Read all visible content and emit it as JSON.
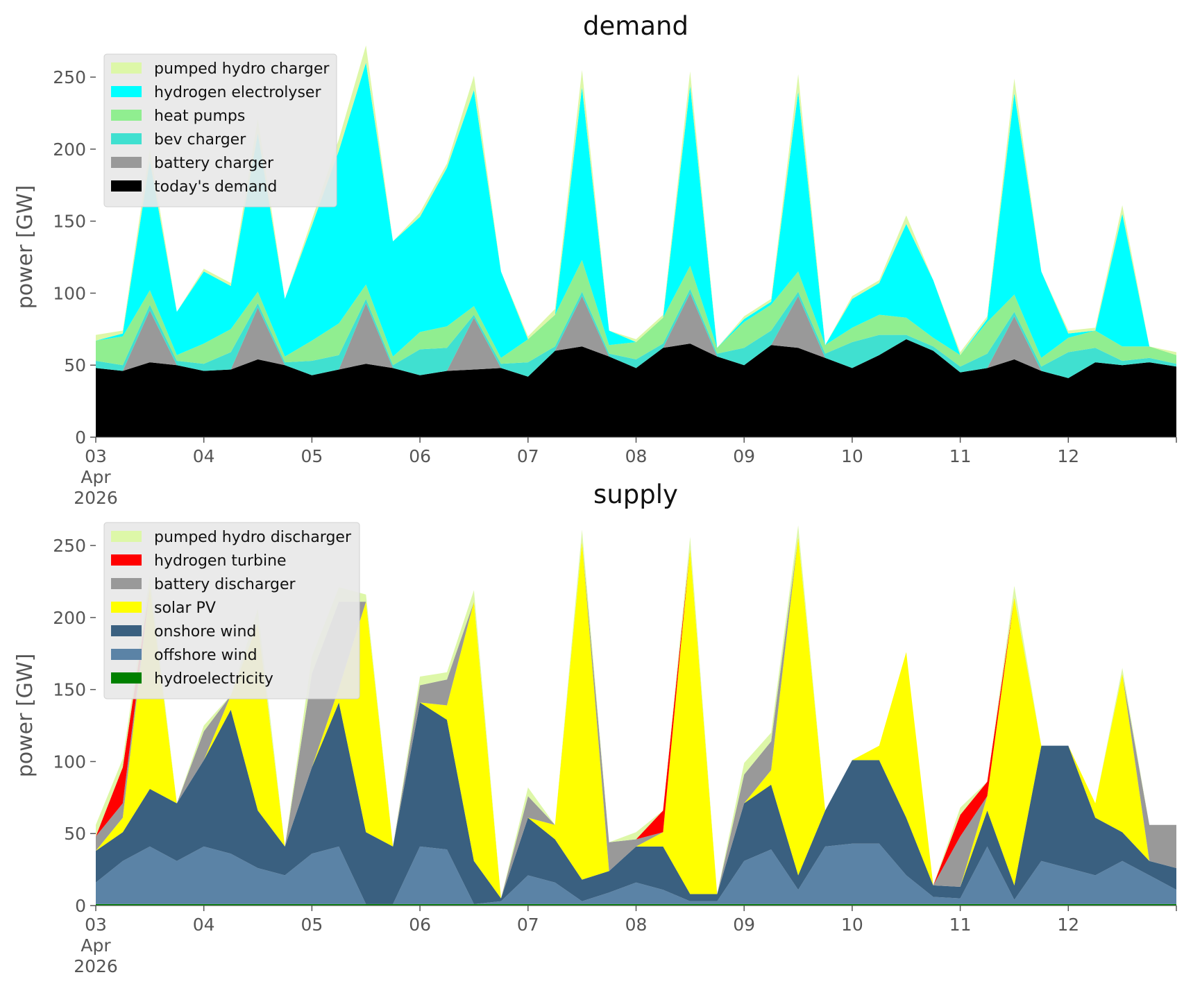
{
  "chart_data": [
    {
      "type": "area",
      "title": "demand",
      "xlabel": "",
      "ylabel": "power [GW]",
      "xlim": [
        "2026-04-03 00:00",
        "2026-04-13 00:00"
      ],
      "ylim": [
        0,
        265
      ],
      "yticks": [
        0,
        50,
        100,
        150,
        200,
        250
      ],
      "xticks": [
        "03\nApr\n2026",
        "04",
        "05",
        "06",
        "07",
        "08",
        "09",
        "10",
        "11",
        "12"
      ],
      "stacked": true,
      "legend_position": "top-left",
      "grid": false,
      "x": [
        "2026-04-03 00:00",
        "2026-04-03 06:00",
        "2026-04-03 12:00",
        "2026-04-03 18:00",
        "2026-04-04 00:00",
        "2026-04-04 06:00",
        "2026-04-04 12:00",
        "2026-04-04 18:00",
        "2026-04-05 00:00",
        "2026-04-05 06:00",
        "2026-04-05 12:00",
        "2026-04-05 18:00",
        "2026-04-06 00:00",
        "2026-04-06 06:00",
        "2026-04-06 12:00",
        "2026-04-06 18:00",
        "2026-04-07 00:00",
        "2026-04-07 06:00",
        "2026-04-07 12:00",
        "2026-04-07 18:00",
        "2026-04-08 00:00",
        "2026-04-08 06:00",
        "2026-04-08 12:00",
        "2026-04-08 18:00",
        "2026-04-09 00:00",
        "2026-04-09 06:00",
        "2026-04-09 12:00",
        "2026-04-09 18:00",
        "2026-04-10 00:00",
        "2026-04-10 06:00",
        "2026-04-10 12:00",
        "2026-04-10 18:00",
        "2026-04-11 00:00",
        "2026-04-11 06:00",
        "2026-04-11 12:00",
        "2026-04-11 18:00",
        "2026-04-12 00:00",
        "2026-04-12 06:00",
        "2026-04-12 12:00",
        "2026-04-12 18:00",
        "2026-04-13 00:00"
      ],
      "series": [
        {
          "name": "today's demand",
          "color": "#000000",
          "values": [
            48,
            46,
            52,
            50,
            46,
            47,
            54,
            50,
            43,
            47,
            51,
            48,
            43,
            46,
            47,
            48,
            42,
            60,
            63,
            56,
            48,
            62,
            65,
            56,
            50,
            64,
            62,
            55,
            48,
            57,
            68,
            60,
            45,
            48,
            54,
            46,
            41,
            52,
            50,
            52,
            49
          ]
        },
        {
          "name": "battery charger",
          "color": "#999999",
          "values": [
            0,
            0,
            36,
            0,
            0,
            0,
            36,
            0,
            0,
            0,
            42,
            0,
            0,
            0,
            36,
            0,
            0,
            0,
            35,
            0,
            0,
            0,
            35,
            0,
            0,
            0,
            36,
            0,
            0,
            0,
            0,
            0,
            0,
            0,
            30,
            0,
            0,
            0,
            0,
            0,
            0
          ]
        },
        {
          "name": "bev charger",
          "color": "#40e0d0",
          "values": [
            5,
            4,
            4,
            3,
            5,
            12,
            3,
            2,
            10,
            10,
            3,
            2,
            18,
            16,
            2,
            3,
            10,
            3,
            3,
            2,
            6,
            3,
            3,
            2,
            12,
            10,
            3,
            3,
            18,
            14,
            3,
            3,
            4,
            10,
            3,
            3,
            18,
            10,
            3,
            3,
            2
          ]
        },
        {
          "name": "heat pumps",
          "color": "#90ee90",
          "values": [
            14,
            20,
            10,
            4,
            14,
            16,
            8,
            4,
            14,
            22,
            10,
            6,
            12,
            15,
            6,
            4,
            16,
            22,
            22,
            6,
            12,
            18,
            16,
            4,
            18,
            18,
            14,
            6,
            10,
            14,
            12,
            6,
            8,
            22,
            12,
            6,
            10,
            12,
            10,
            8,
            6
          ]
        },
        {
          "name": "hydrogen electrolyser",
          "color": "#00ffff",
          "values": [
            0,
            2,
            90,
            30,
            50,
            30,
            110,
            40,
            80,
            120,
            154,
            80,
            80,
            110,
            150,
            60,
            0,
            0,
            120,
            10,
            0,
            0,
            125,
            0,
            2,
            2,
            125,
            0,
            20,
            22,
            65,
            40,
            0,
            2,
            140,
            60,
            3,
            0,
            92,
            0,
            0
          ]
        },
        {
          "name": "pumped hydro charger",
          "color": "#ddf7a8",
          "values": [
            4,
            2,
            8,
            0,
            2,
            2,
            10,
            0,
            4,
            8,
            12,
            0,
            3,
            3,
            10,
            0,
            2,
            4,
            12,
            0,
            2,
            2,
            10,
            0,
            2,
            2,
            12,
            0,
            2,
            2,
            6,
            0,
            2,
            2,
            10,
            0,
            2,
            2,
            6,
            0,
            2
          ]
        }
      ]
    },
    {
      "type": "area",
      "title": "supply",
      "xlabel": "",
      "ylabel": "power [GW]",
      "xlim": [
        "2026-04-03 00:00",
        "2026-04-13 00:00"
      ],
      "ylim": [
        0,
        265
      ],
      "yticks": [
        0,
        50,
        100,
        150,
        200,
        250
      ],
      "xticks": [
        "03\nApr\n2026",
        "04",
        "05",
        "06",
        "07",
        "08",
        "09",
        "10",
        "11",
        "12"
      ],
      "stacked": true,
      "legend_position": "top-left",
      "grid": false,
      "x": [
        "2026-04-03 00:00",
        "2026-04-03 06:00",
        "2026-04-03 12:00",
        "2026-04-03 18:00",
        "2026-04-04 00:00",
        "2026-04-04 06:00",
        "2026-04-04 12:00",
        "2026-04-04 18:00",
        "2026-04-05 00:00",
        "2026-04-05 06:00",
        "2026-04-05 12:00",
        "2026-04-05 18:00",
        "2026-04-06 00:00",
        "2026-04-06 06:00",
        "2026-04-06 12:00",
        "2026-04-06 18:00",
        "2026-04-07 00:00",
        "2026-04-07 06:00",
        "2026-04-07 12:00",
        "2026-04-07 18:00",
        "2026-04-08 00:00",
        "2026-04-08 06:00",
        "2026-04-08 12:00",
        "2026-04-08 18:00",
        "2026-04-09 00:00",
        "2026-04-09 06:00",
        "2026-04-09 12:00",
        "2026-04-09 18:00",
        "2026-04-10 00:00",
        "2026-04-10 06:00",
        "2026-04-10 12:00",
        "2026-04-10 18:00",
        "2026-04-11 00:00",
        "2026-04-11 06:00",
        "2026-04-11 12:00",
        "2026-04-11 18:00",
        "2026-04-12 00:00",
        "2026-04-12 06:00",
        "2026-04-12 12:00",
        "2026-04-12 18:00",
        "2026-04-13 00:00"
      ],
      "series": [
        {
          "name": "hydroelectricity",
          "color": "#008000",
          "values": [
            1,
            1,
            1,
            1,
            1,
            1,
            1,
            1,
            1,
            1,
            1,
            1,
            1,
            1,
            1,
            1,
            1,
            1,
            1,
            1,
            1,
            1,
            1,
            1,
            1,
            1,
            1,
            1,
            1,
            1,
            1,
            1,
            1,
            1,
            1,
            1,
            1,
            1,
            1,
            1,
            1
          ]
        },
        {
          "name": "offshore wind",
          "color": "#5b83a6",
          "values": [
            15,
            30,
            40,
            30,
            40,
            35,
            25,
            20,
            35,
            40,
            0,
            0,
            40,
            38,
            0,
            2,
            20,
            15,
            2,
            8,
            15,
            10,
            2,
            2,
            30,
            38,
            10,
            40,
            42,
            42,
            20,
            5,
            4,
            40,
            3,
            30,
            25,
            20,
            30,
            20,
            10
          ]
        },
        {
          "name": "onshore wind",
          "color": "#3a6080",
          "values": [
            22,
            20,
            40,
            40,
            60,
            100,
            40,
            20,
            60,
            100,
            50,
            40,
            100,
            90,
            30,
            2,
            40,
            30,
            15,
            15,
            25,
            30,
            5,
            5,
            40,
            45,
            10,
            25,
            58,
            58,
            40,
            8,
            8,
            25,
            10,
            80,
            85,
            40,
            20,
            10,
            15
          ]
        },
        {
          "name": "solar PV",
          "color": "#ffff00",
          "values": [
            0,
            10,
            140,
            0,
            0,
            10,
            130,
            0,
            0,
            10,
            160,
            0,
            0,
            10,
            180,
            0,
            0,
            10,
            235,
            0,
            0,
            10,
            240,
            0,
            0,
            10,
            235,
            0,
            0,
            10,
            115,
            0,
            0,
            10,
            200,
            0,
            0,
            10,
            110,
            0,
            0
          ]
        },
        {
          "name": "battery discharger",
          "color": "#999999",
          "values": [
            10,
            10,
            0,
            0,
            20,
            0,
            0,
            0,
            65,
            60,
            0,
            0,
            12,
            18,
            0,
            0,
            15,
            0,
            0,
            20,
            5,
            0,
            0,
            0,
            20,
            20,
            0,
            0,
            0,
            0,
            0,
            0,
            35,
            0,
            0,
            0,
            0,
            0,
            0,
            25,
            30
          ]
        },
        {
          "name": "hydrogen turbine",
          "color": "#ff0000",
          "values": [
            0,
            25,
            0,
            0,
            0,
            0,
            0,
            0,
            0,
            0,
            0,
            0,
            0,
            0,
            0,
            0,
            0,
            0,
            0,
            0,
            0,
            15,
            0,
            0,
            0,
            0,
            0,
            0,
            0,
            0,
            0,
            0,
            15,
            10,
            0,
            0,
            0,
            0,
            0,
            0,
            0
          ]
        },
        {
          "name": "pumped hydro discharger",
          "color": "#ddf7a8",
          "values": [
            8,
            6,
            8,
            0,
            4,
            0,
            10,
            0,
            12,
            10,
            5,
            0,
            6,
            5,
            8,
            0,
            6,
            0,
            8,
            0,
            5,
            0,
            8,
            0,
            8,
            6,
            8,
            0,
            0,
            0,
            0,
            0,
            5,
            0,
            8,
            0,
            0,
            0,
            4,
            0,
            0
          ]
        }
      ]
    }
  ]
}
